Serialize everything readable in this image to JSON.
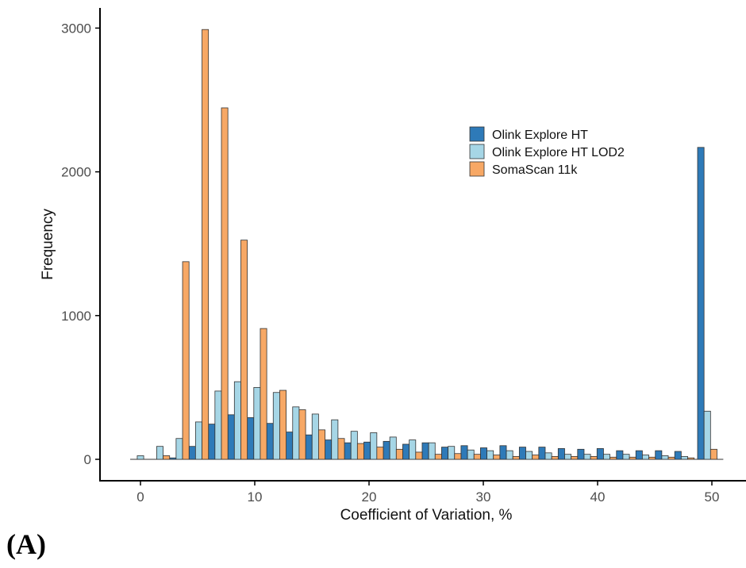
{
  "panel_label": "(A)",
  "chart_data": {
    "type": "bar",
    "xlabel": "Coefficient of Variation, %",
    "ylabel": "Frequency",
    "xlim": [
      -3,
      53
    ],
    "ylim": [
      0,
      3200
    ],
    "x_ticks": [
      "0",
      "10",
      "20",
      "30",
      "40",
      "50"
    ],
    "y_ticks": [
      "0",
      "1000",
      "2000",
      "3000"
    ],
    "grid": false,
    "legend_position": "upper-right",
    "bin_width": 1.7,
    "x": [
      0,
      1.7,
      3.4,
      5.1,
      6.8,
      8.5,
      10.2,
      11.9,
      13.6,
      15.3,
      17.0,
      18.7,
      20.4,
      22.1,
      23.8,
      25.5,
      27.2,
      28.9,
      30.6,
      32.3,
      34.0,
      35.7,
      37.4,
      39.1,
      40.8,
      42.5,
      44.2,
      45.9,
      47.6,
      49.6
    ],
    "series": [
      {
        "name": "Olink Explore HT",
        "color": "#2E7AB8",
        "values": [
          0,
          0,
          10,
          90,
          245,
          310,
          290,
          250,
          190,
          170,
          135,
          115,
          120,
          125,
          105,
          115,
          85,
          95,
          80,
          95,
          85,
          85,
          75,
          70,
          75,
          60,
          60,
          60,
          55,
          2170
        ]
      },
      {
        "name": "Olink Explore HT LOD2",
        "color": "#A6D6E6",
        "values": [
          25,
          90,
          145,
          260,
          475,
          540,
          500,
          465,
          365,
          315,
          275,
          195,
          185,
          155,
          135,
          115,
          90,
          65,
          60,
          60,
          55,
          45,
          35,
          35,
          35,
          35,
          30,
          25,
          20,
          335
        ]
      },
      {
        "name": "SomaScan 11k",
        "color": "#F7A865",
        "values": [
          0,
          25,
          1375,
          2990,
          2445,
          1525,
          910,
          480,
          345,
          205,
          145,
          110,
          85,
          70,
          50,
          35,
          40,
          35,
          30,
          20,
          30,
          20,
          20,
          20,
          15,
          15,
          15,
          15,
          10,
          70
        ]
      }
    ]
  }
}
